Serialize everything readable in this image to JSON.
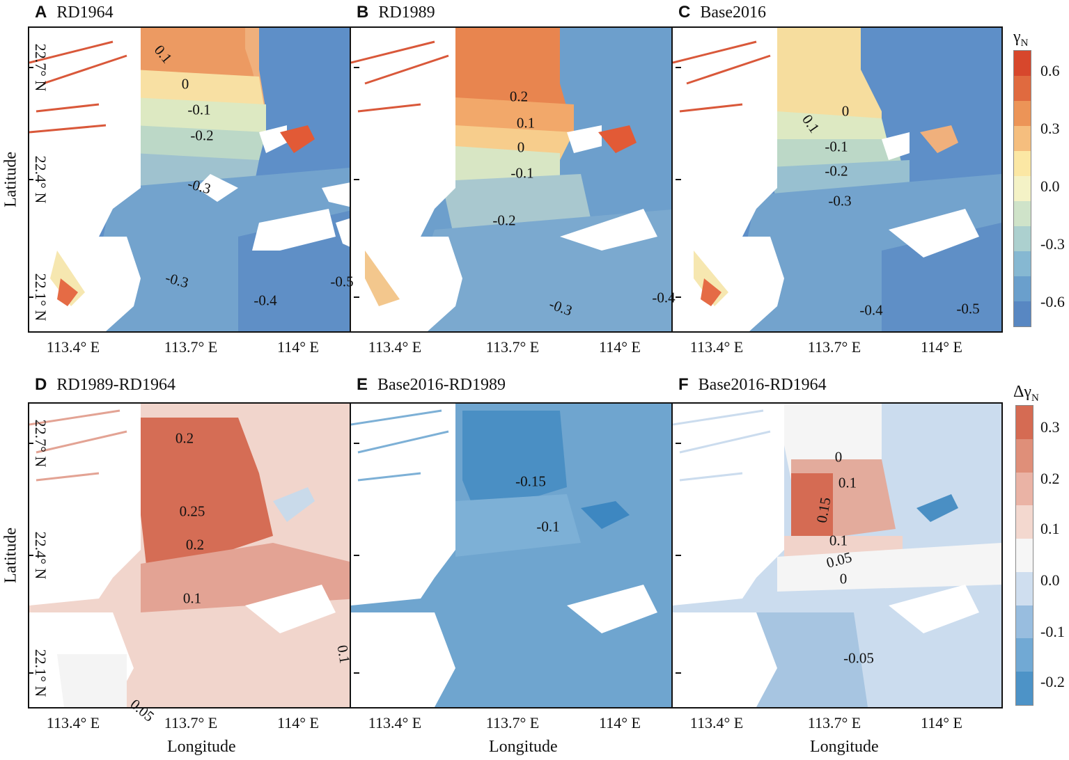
{
  "panels": [
    {
      "letter": "A",
      "title": "RD1964",
      "labels": [
        "0.1",
        "0",
        "-0.1",
        "-0.2",
        "-0.3",
        "-0.3",
        "-0.4",
        "-0.5"
      ]
    },
    {
      "letter": "B",
      "title": "RD1989",
      "labels": [
        "0.2",
        "0.1",
        "0",
        "-0.1",
        "-0.2",
        "-0.3",
        "-0.4"
      ]
    },
    {
      "letter": "C",
      "title": "Base2016",
      "labels": [
        "0.1",
        "0",
        "-0.1",
        "-0.2",
        "-0.3",
        "-0.4",
        "-0.5"
      ]
    },
    {
      "letter": "D",
      "title": "RD1989-RD1964",
      "labels": [
        "0.2",
        "0.25",
        "0.2",
        "0.1",
        "0.1",
        "0.05"
      ]
    },
    {
      "letter": "E",
      "title": "Base2016-RD1989",
      "labels": [
        "-0.15",
        "-0.1"
      ]
    },
    {
      "letter": "F",
      "title": "Base2016-RD1964",
      "labels": [
        "0",
        "0.1",
        "0.15",
        "0.1",
        "0.05",
        "0",
        "-0.05"
      ]
    }
  ],
  "axes": {
    "x_ticks": [
      "113.4° E",
      "113.7° E",
      "114° E"
    ],
    "y_ticks": [
      "22.1° N",
      "22.4° N",
      "22.7° N"
    ],
    "xlabel": "Longitude",
    "ylabel": "Latitude"
  },
  "colorbars": {
    "top": {
      "symbol": "γ",
      "sub": "N",
      "ticks": [
        "0.6",
        "0.3",
        "0.0",
        "-0.3",
        "-0.6"
      ]
    },
    "bottom": {
      "symbol": "Δγ",
      "sub": "N",
      "ticks": [
        "0.3",
        "0.2",
        "0.1",
        "0.0",
        "-0.1",
        "-0.2"
      ]
    }
  },
  "colors": {
    "div_top": [
      "#d7472c",
      "#e06a3f",
      "#ec9457",
      "#f5be7e",
      "#fbe7a4",
      "#f4f2c6",
      "#cfe3c9",
      "#acd0cf",
      "#86b8d2",
      "#6a9fcc",
      "#5887c2"
    ],
    "div_bottom": [
      "#d56b53",
      "#df8f79",
      "#eab3a5",
      "#f3d8cf",
      "#f6f6f6",
      "#cfdeef",
      "#98bddf",
      "#71a9d4",
      "#4d93c7"
    ]
  }
}
